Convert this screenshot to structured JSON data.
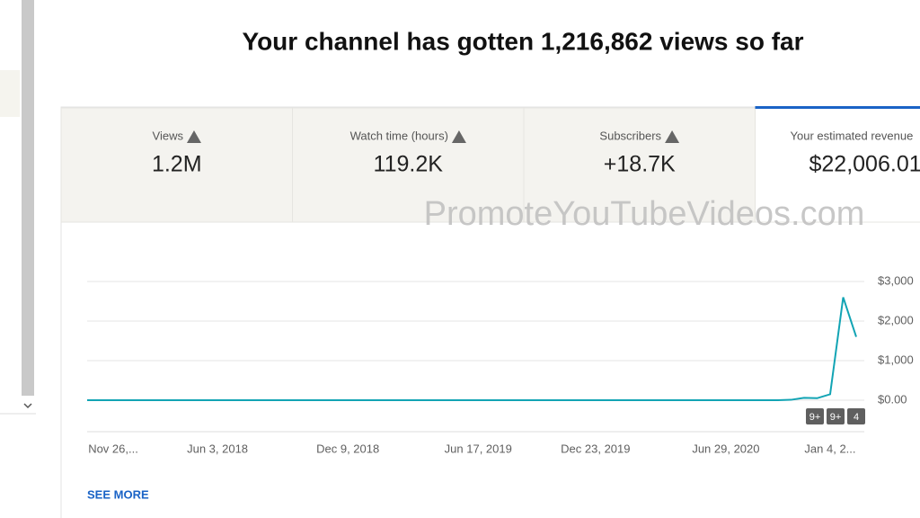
{
  "header": {
    "title": "Your channel has gotten 1,216,862 views so far"
  },
  "tabs": [
    {
      "label": "Views",
      "value": "1.2M"
    },
    {
      "label": "Watch time (hours)",
      "value": "119.2K"
    },
    {
      "label": "Subscribers",
      "value": "+18.7K"
    },
    {
      "label": "Your estimated revenue",
      "value": "$22,006.01"
    }
  ],
  "watermark": "PromoteYouTubeVideos.com",
  "chart_data": {
    "type": "line",
    "categories": [
      null,
      null,
      "Nov 26,...",
      null,
      null,
      null,
      null,
      null,
      null,
      null,
      "Jun 3, 2018",
      null,
      null,
      null,
      null,
      null,
      null,
      null,
      null,
      null,
      "Dec 9, 2018",
      null,
      null,
      null,
      null,
      null,
      null,
      null,
      null,
      null,
      "Jun 17, 2019",
      null,
      null,
      null,
      null,
      null,
      null,
      null,
      null,
      "Dec 23, 2019",
      null,
      null,
      null,
      null,
      null,
      null,
      null,
      null,
      null,
      "Jun 29, 2020",
      null,
      null,
      null,
      null,
      null,
      null,
      null,
      "Jan 4, 2...",
      null,
      null
    ],
    "series": [
      {
        "name": "Revenue",
        "color": "#12a4b4",
        "values": [
          0,
          0,
          0,
          0,
          0,
          0,
          0,
          0,
          0,
          0,
          0,
          0,
          0,
          0,
          0,
          0,
          0,
          0,
          0,
          0,
          0,
          0,
          0,
          0,
          0,
          0,
          0,
          0,
          0,
          0,
          0,
          0,
          0,
          0,
          0,
          0,
          0,
          0,
          0,
          0,
          0,
          0,
          0,
          0,
          0,
          0,
          0,
          0,
          0,
          0,
          0,
          0,
          0,
          0,
          10,
          60,
          50,
          150,
          2600,
          1600
        ]
      }
    ],
    "ylim": [
      0,
      3000
    ],
    "yticks": [
      {
        "value": 0,
        "label": "$0.00"
      },
      {
        "value": 1000,
        "label": "$1,000"
      },
      {
        "value": 2000,
        "label": "$2,000"
      },
      {
        "value": 3000,
        "label": "$3,000"
      }
    ],
    "grid": true,
    "annotations": [
      "9+",
      "9+",
      "4"
    ]
  },
  "see_more": "SEE MORE"
}
